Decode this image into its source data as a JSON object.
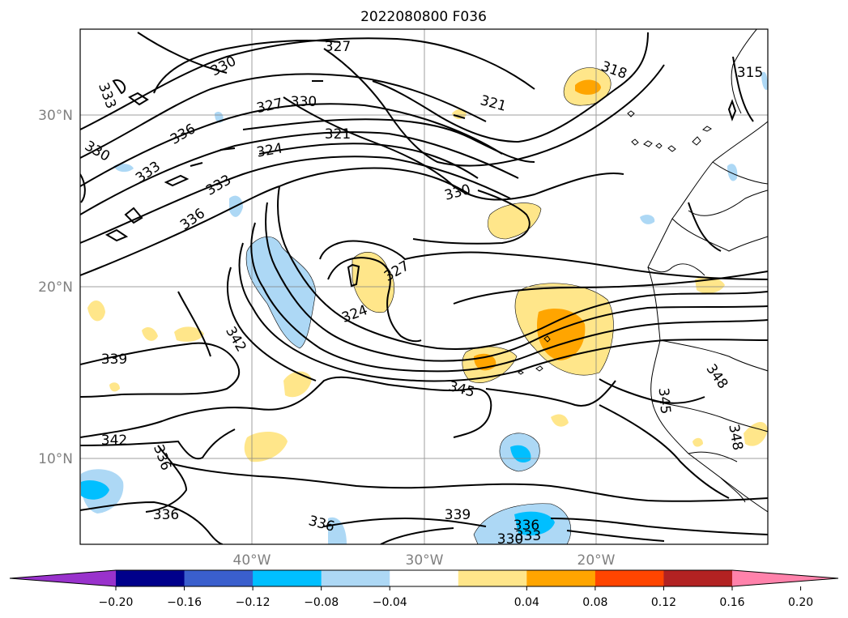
{
  "title": "2022080800 F036",
  "map": {
    "lat_labels": [
      "30°N",
      "20°N",
      "10°N"
    ],
    "lon_labels": [
      "40°W",
      "30°W",
      "20°W"
    ],
    "lat_values": [
      30,
      20,
      10
    ],
    "lon_values": [
      -40,
      -30,
      -20
    ],
    "extent": {
      "lon_min": -50,
      "lon_max": -10,
      "lat_min": 5,
      "lat_max": 35
    },
    "grid": true,
    "contour_labels": [
      "327",
      "330",
      "333",
      "330",
      "336",
      "327",
      "330",
      "321",
      "324",
      "333",
      "333",
      "336",
      "321",
      "330",
      "318",
      "315",
      "327",
      "324",
      "342",
      "339",
      "345",
      "348",
      "342",
      "336",
      "348",
      "336",
      "336",
      "339",
      "336",
      "330",
      "333",
      "345"
    ]
  },
  "colorbar": {
    "ticks": [
      "−0.20",
      "−0.16",
      "−0.12",
      "−0.08",
      "−0.04",
      "0.04",
      "0.08",
      "0.12",
      "0.16",
      "0.20"
    ],
    "colors": [
      "#9932cc",
      "#00008b",
      "#3a5fcd",
      "#00bfff",
      "#add8f5",
      "#ffffff",
      "#ffe68a",
      "#ffa500",
      "#ff4500",
      "#b22222",
      "#ff82ab"
    ]
  }
}
